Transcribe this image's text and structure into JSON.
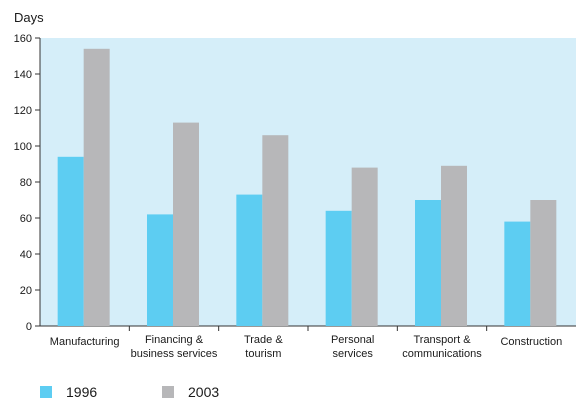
{
  "chart_data": {
    "type": "bar",
    "ylabel": "Days",
    "ylim": [
      0,
      160
    ],
    "yticks": [
      0,
      20,
      40,
      60,
      80,
      100,
      120,
      140,
      160
    ],
    "categories": [
      [
        "Manufacturing"
      ],
      [
        "Financing &",
        "business services"
      ],
      [
        "Trade &",
        "tourism"
      ],
      [
        "Personal",
        "services"
      ],
      [
        "Transport &",
        "communications"
      ],
      [
        "Construction"
      ]
    ],
    "series": [
      {
        "name": "1996",
        "color": "#5dcdf2",
        "values": [
          94,
          62,
          73,
          64,
          70,
          58
        ]
      },
      {
        "name": "2003",
        "color": "#b7b7b9",
        "values": [
          154,
          113,
          106,
          88,
          89,
          70
        ]
      }
    ],
    "grid": false,
    "legend_position": "bottom-left",
    "plot_background": "#d5eef9"
  }
}
